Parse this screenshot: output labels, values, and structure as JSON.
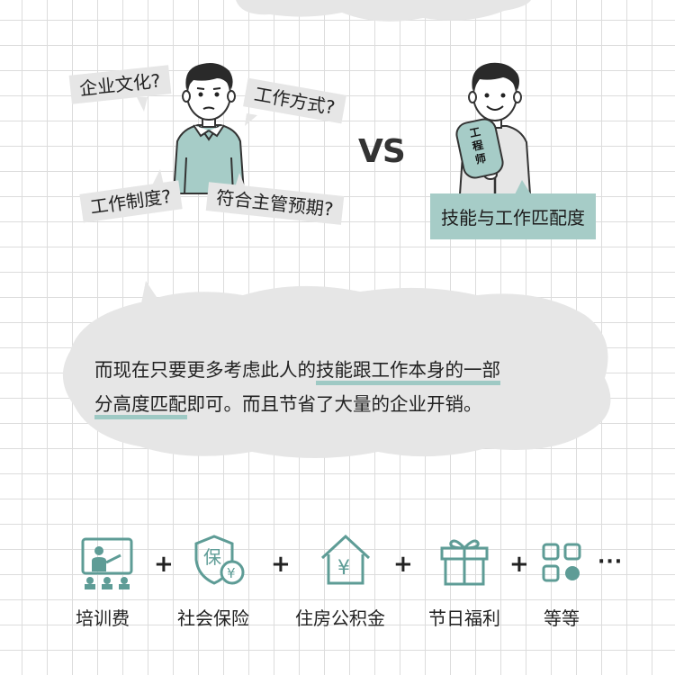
{
  "left_bubbles": [
    "企业文化?",
    "工作方式?",
    "工作制度?",
    "符合主管预期?"
  ],
  "vs_text": "VS",
  "sign_text": "工程师",
  "skill_tag": "技能与工作匹配度",
  "cloud": {
    "line1_pre": "而现在只要更多考虑此人的",
    "line1_hl": "技能跟工作本身的一部",
    "line2_hl": "分高度匹配",
    "line2_post": "即可。而且节省了大量的企业开销。"
  },
  "benefits": [
    {
      "label": "培训费",
      "icon": "training-icon"
    },
    {
      "label": "社会保险",
      "icon": "insurance-shield-icon"
    },
    {
      "label": "住房公积金",
      "icon": "house-fund-icon"
    },
    {
      "label": "节日福利",
      "icon": "gift-icon"
    },
    {
      "label": "等等",
      "icon": "grid-more-icon"
    }
  ],
  "plus": "+",
  "ellipsis": "···",
  "colors": {
    "accent": "#5e9c96",
    "tag_bg": "#a6ccc7",
    "cloud_bg": "#e6e6e6"
  }
}
